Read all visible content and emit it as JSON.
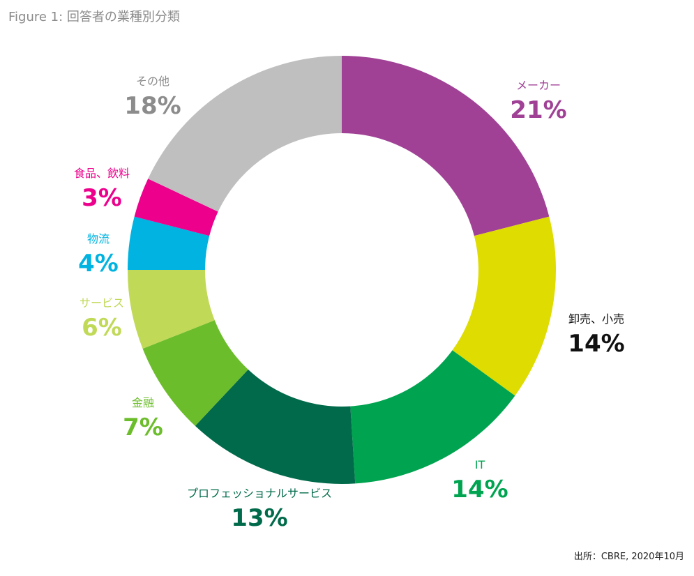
{
  "chart_data": {
    "type": "pie",
    "style": "donut",
    "title": "Figure 1: 回答者の業種別分類",
    "categories": [
      "メーカー",
      "卸売、小売",
      "IT",
      "プロフェッショナルサービス",
      "金融",
      "サービス",
      "物流",
      "食品、飲料",
      "その他"
    ],
    "values": [
      21,
      14,
      14,
      13,
      7,
      6,
      4,
      3,
      18
    ],
    "value_labels": [
      "21%",
      "14%",
      "14%",
      "13%",
      "7%",
      "6%",
      "4%",
      "3%",
      "18%"
    ],
    "colors": [
      "#a04196",
      "#dedc00",
      "#00a450",
      "#006a4a",
      "#6cbd2b",
      "#c0d957",
      "#00b3e0",
      "#ec008c",
      "#bfbfbf"
    ],
    "label_colors": [
      "#a04196",
      "#111111",
      "#00a450",
      "#006a4a",
      "#6cbd2b",
      "#c0d957",
      "#00b3e0",
      "#ec008c",
      "#8c8c8c"
    ],
    "source": "出所：CBRE, 2020年10月"
  }
}
